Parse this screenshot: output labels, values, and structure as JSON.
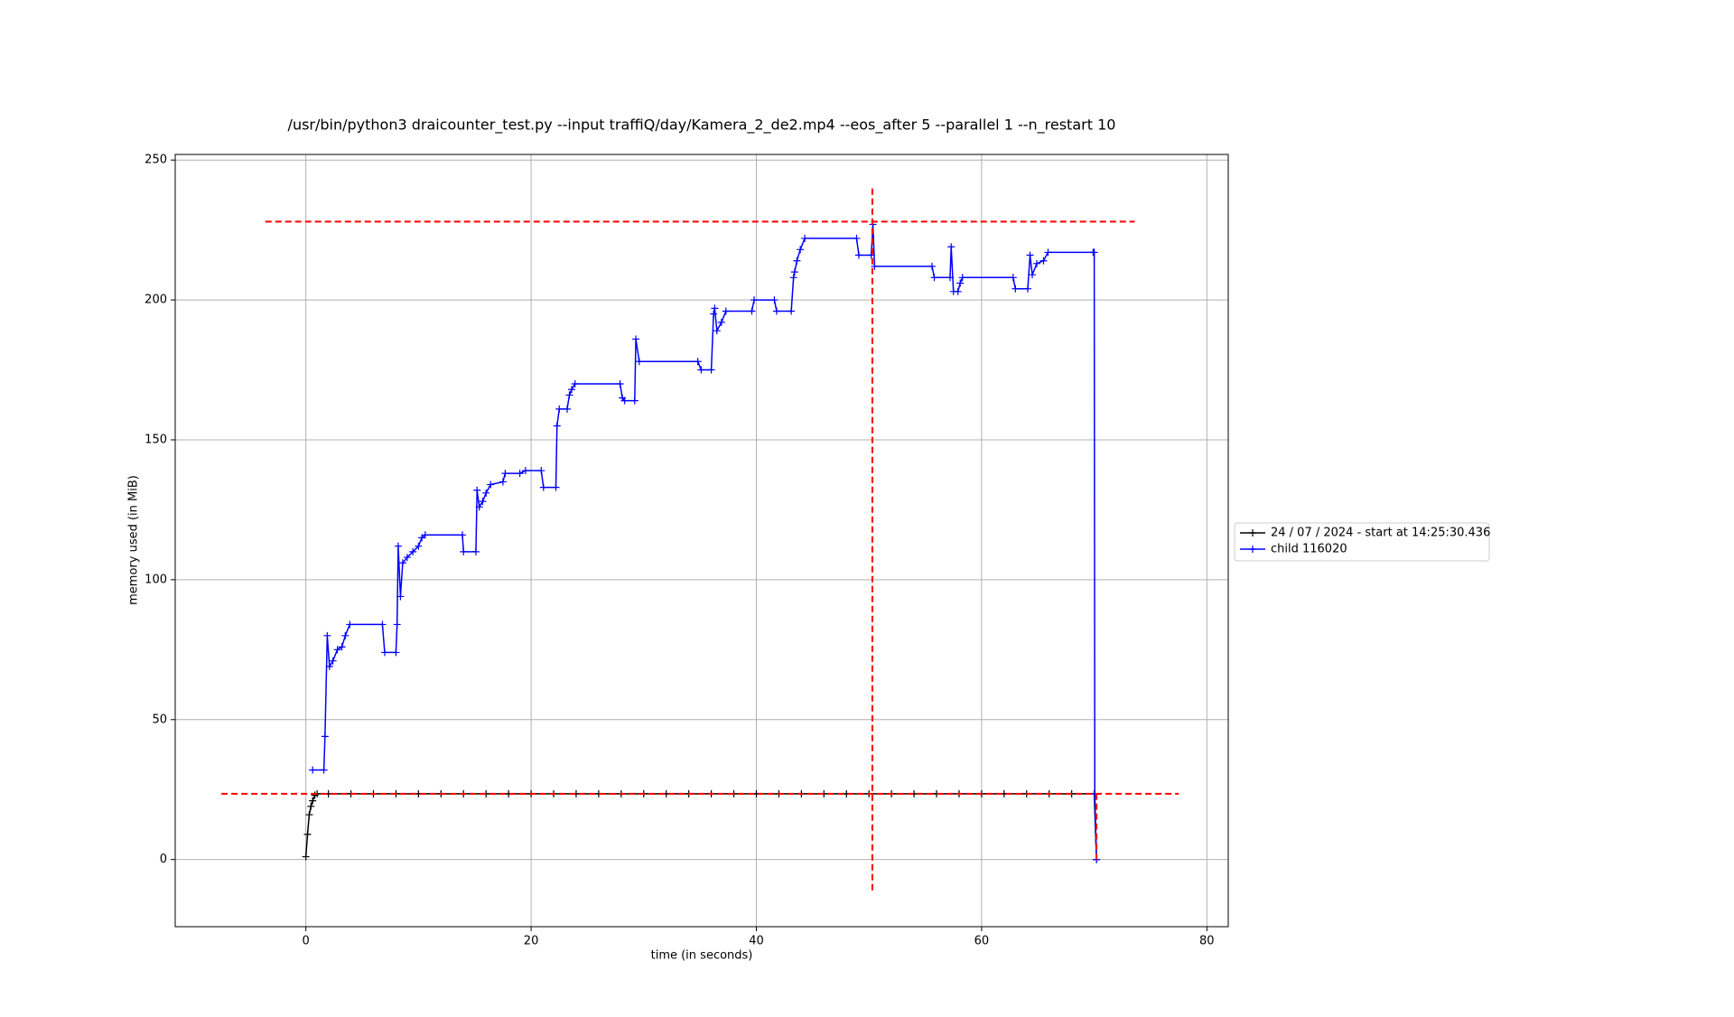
{
  "chart_data": {
    "type": "line",
    "title": "/usr/bin/python3 draicounter_test.py --input traffiQ/day/Kamera_2_de2.mp4 --eos_after 5 --parallel 1 --n_restart 10",
    "x_label": "time (in seconds)",
    "y_label": "memory used (in MiB)",
    "xlim": [
      -11.6,
      81.9
    ],
    "ylim": [
      -24,
      252
    ],
    "xticks": [
      0,
      20,
      40,
      60,
      80
    ],
    "yticks": [
      0,
      50,
      100,
      150,
      200,
      250
    ],
    "grid": true,
    "legend_position": "outside-right",
    "series": [
      {
        "name": "24 / 07 / 2024 - start at 14:25:30.436",
        "color": "#000000",
        "x": [
          0,
          0.15,
          0.3,
          0.45,
          0.6,
          0.8,
          1,
          2,
          4,
          6,
          8,
          10,
          12,
          14,
          16,
          18,
          20,
          22,
          24,
          26,
          28,
          30,
          32,
          34,
          36,
          38,
          40,
          42,
          44,
          46,
          48,
          50,
          52,
          54,
          56,
          58,
          60,
          62,
          64,
          66,
          68,
          70,
          70.2
        ],
        "values": [
          1,
          9,
          16,
          19,
          21,
          23,
          23.5,
          23.5,
          23.5,
          23.5,
          23.5,
          23.5,
          23.5,
          23.5,
          23.5,
          23.5,
          23.5,
          23.5,
          23.5,
          23.5,
          23.5,
          23.5,
          23.5,
          23.5,
          23.5,
          23.5,
          23.5,
          23.5,
          23.5,
          23.5,
          23.5,
          23.5,
          23.5,
          23.5,
          23.5,
          23.5,
          23.5,
          23.5,
          23.5,
          23.5,
          23.5,
          23.5,
          0
        ]
      },
      {
        "name": "child 116020",
        "color": "#0000ff",
        "x": [
          0.6,
          1.6,
          1.7,
          1.9,
          2.1,
          2.4,
          2.8,
          3.2,
          3.5,
          3.9,
          6.8,
          7.0,
          8.0,
          8.1,
          8.2,
          8.4,
          8.6,
          9,
          9.5,
          10,
          10.3,
          10.6,
          13.9,
          14,
          15.1,
          15.2,
          15.4,
          15.7,
          16,
          16.4,
          17.5,
          17.7,
          19,
          19.5,
          20.9,
          21.1,
          22.2,
          22.3,
          22.5,
          23.2,
          23.4,
          23.6,
          23.9,
          27.9,
          28.1,
          28.3,
          29.2,
          29.3,
          29.6,
          34.8,
          35.1,
          36,
          36.2,
          36.3,
          36.5,
          36.9,
          37.3,
          39.6,
          39.8,
          41.6,
          41.8,
          43.1,
          43.3,
          43.4,
          43.6,
          43.9,
          44.3,
          48.9,
          49.1,
          50.2,
          50.35,
          50.5,
          55.6,
          55.8,
          57.2,
          57.3,
          57.5,
          57.9,
          58.1,
          58.3,
          62.8,
          63,
          64.1,
          64.3,
          64.5,
          64.9,
          65.5,
          65.9,
          69.9,
          70,
          70.05,
          70.2
        ],
        "values": [
          32,
          32,
          44,
          80,
          69,
          71,
          75,
          76,
          80,
          84,
          84,
          74,
          74,
          84,
          112,
          94,
          106,
          108,
          110,
          112,
          115,
          116,
          116,
          110,
          110,
          132,
          126,
          128,
          131,
          134,
          135,
          138,
          138,
          139,
          139,
          133,
          133,
          155,
          161,
          161,
          166,
          168,
          170,
          170,
          165,
          164,
          164,
          186,
          178,
          178,
          175,
          175,
          195,
          197,
          189,
          192,
          196,
          196,
          200,
          200,
          196,
          196,
          208,
          210,
          214,
          218,
          222,
          222,
          216,
          216,
          227,
          212,
          212,
          208,
          208,
          219,
          203,
          203,
          206,
          208,
          208,
          204,
          204,
          216,
          209,
          213,
          214,
          217,
          217,
          217,
          23.5,
          0
        ]
      }
    ],
    "reference_lines": [
      {
        "orientation": "horizontal",
        "value": 228,
        "from": -3.6,
        "to": 73.6,
        "color": "#ff0000"
      },
      {
        "orientation": "horizontal",
        "value": 23.5,
        "from": -7.5,
        "to": 77.5,
        "color": "#ff0000"
      },
      {
        "orientation": "vertical",
        "value": 50.3,
        "from": -11,
        "to": 240,
        "color": "#ff0000"
      },
      {
        "orientation": "vertical",
        "value": 70.2,
        "from": 0,
        "to": 23.5,
        "color": "#ff0000"
      }
    ]
  }
}
